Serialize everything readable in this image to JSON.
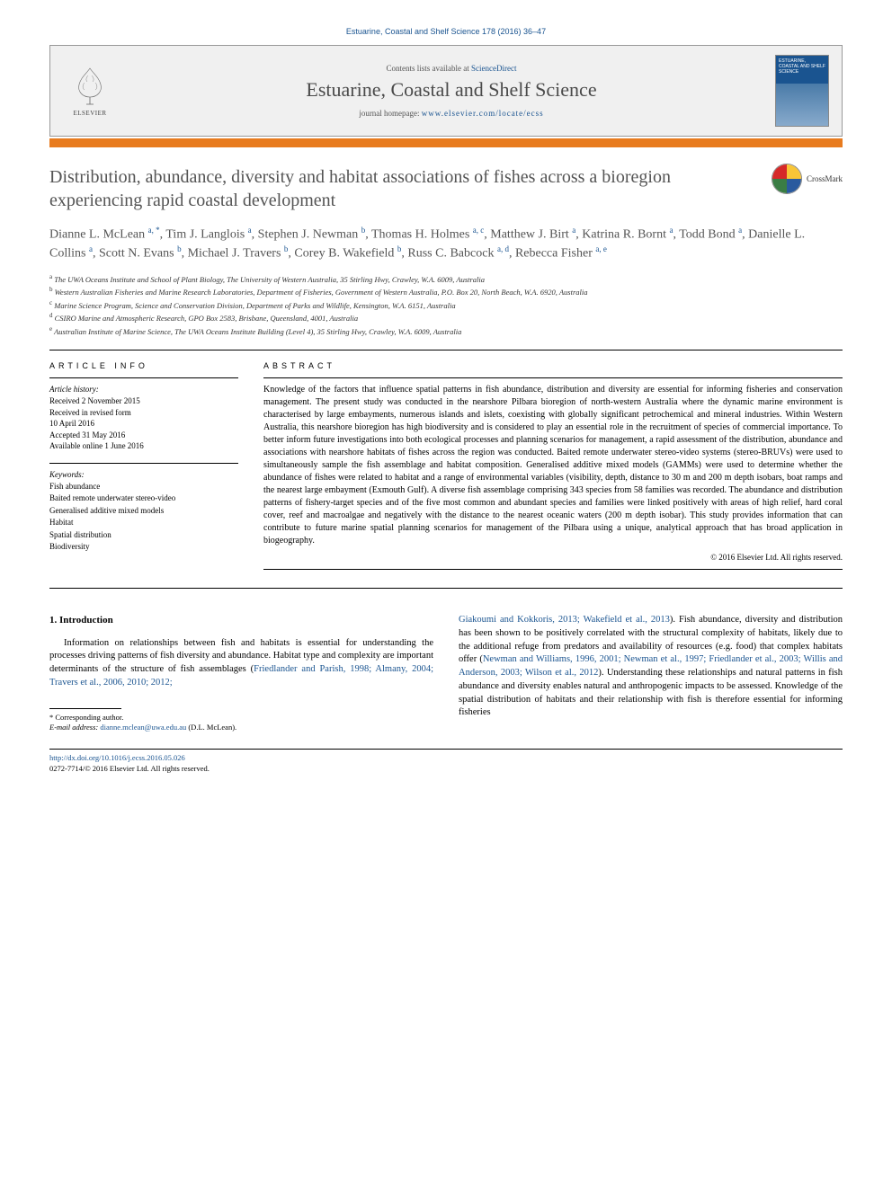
{
  "header": {
    "citation": "Estuarine, Coastal and Shelf Science 178 (2016) 36–47",
    "contents_prefix": "Contents lists available at ",
    "contents_link": "ScienceDirect",
    "journal_title": "Estuarine, Coastal and Shelf Science",
    "homepage_prefix": "journal homepage: ",
    "homepage_url": "www.elsevier.com/locate/ecss",
    "elsevier_label": "ELSEVIER",
    "cover_label": "ESTUARINE, COASTAL AND SHELF SCIENCE",
    "crossmark": "CrossMark"
  },
  "article": {
    "title": "Distribution, abundance, diversity and habitat associations of fishes across a bioregion experiencing rapid coastal development",
    "authors_html": "Dianne L. McLean <sup>a, *</sup>, Tim J. Langlois <sup>a</sup>, Stephen J. Newman <sup>b</sup>, Thomas H. Holmes <sup>a, c</sup>, Matthew J. Birt <sup>a</sup>, Katrina R. Bornt <sup>a</sup>, Todd Bond <sup>a</sup>, Danielle L. Collins <sup>a</sup>, Scott N. Evans <sup>b</sup>, Michael J. Travers <sup>b</sup>, Corey B. Wakefield <sup>b</sup>, Russ C. Babcock <sup>a, d</sup>, Rebecca Fisher <sup>a, e</sup>",
    "affiliations": [
      {
        "sup": "a",
        "text": "The UWA Oceans Institute and School of Plant Biology, The University of Western Australia, 35 Stirling Hwy, Crawley, W.A. 6009, Australia"
      },
      {
        "sup": "b",
        "text": "Western Australian Fisheries and Marine Research Laboratories, Department of Fisheries, Government of Western Australia, P.O. Box 20, North Beach, W.A. 6920, Australia"
      },
      {
        "sup": "c",
        "text": "Marine Science Program, Science and Conservation Division, Department of Parks and Wildlife, Kensington, W.A. 6151, Australia"
      },
      {
        "sup": "d",
        "text": "CSIRO Marine and Atmospheric Research, GPO Box 2583, Brisbane, Queensland, 4001, Australia"
      },
      {
        "sup": "e",
        "text": "Australian Institute of Marine Science, The UWA Oceans Institute Building (Level 4), 35 Stirling Hwy, Crawley, W.A. 6009, Australia"
      }
    ]
  },
  "info": {
    "heading": "ARTICLE INFO",
    "history_label": "Article history:",
    "history": [
      "Received 2 November 2015",
      "Received in revised form",
      "10 April 2016",
      "Accepted 31 May 2016",
      "Available online 1 June 2016"
    ],
    "keywords_label": "Keywords:",
    "keywords": [
      "Fish abundance",
      "Baited remote underwater stereo-video",
      "Generalised additive mixed models",
      "Habitat",
      "Spatial distribution",
      "Biodiversity"
    ]
  },
  "abstract": {
    "heading": "ABSTRACT",
    "text": "Knowledge of the factors that influence spatial patterns in fish abundance, distribution and diversity are essential for informing fisheries and conservation management. The present study was conducted in the nearshore Pilbara bioregion of north-western Australia where the dynamic marine environment is characterised by large embayments, numerous islands and islets, coexisting with globally significant petrochemical and mineral industries. Within Western Australia, this nearshore bioregion has high biodiversity and is considered to play an essential role in the recruitment of species of commercial importance. To better inform future investigations into both ecological processes and planning scenarios for management, a rapid assessment of the distribution, abundance and associations with nearshore habitats of fishes across the region was conducted. Baited remote underwater stereo-video systems (stereo-BRUVs) were used to simultaneously sample the fish assemblage and habitat composition. Generalised additive mixed models (GAMMs) were used to determine whether the abundance of fishes were related to habitat and a range of environmental variables (visibility, depth, distance to 30 m and 200 m depth isobars, boat ramps and the nearest large embayment (Exmouth Gulf). A diverse fish assemblage comprising 343 species from 58 families was recorded. The abundance and distribution patterns of fishery-target species and of the five most common and abundant species and families were linked positively with areas of high relief, hard coral cover, reef and macroalgae and negatively with the distance to the nearest oceanic waters (200 m depth isobar). This study provides information that can contribute to future marine spatial planning scenarios for management of the Pilbara using a unique, analytical approach that has broad application in biogeography.",
    "copyright": "© 2016 Elsevier Ltd. All rights reserved."
  },
  "body": {
    "section_number": "1.",
    "section_title": "Introduction",
    "left_para": "Information on relationships between fish and habitats is essential for understanding the processes driving patterns of fish diversity and abundance. Habitat type and complexity are important determinants of the structure of fish assemblages (",
    "left_refs": "Friedlander and Parish, 1998; Almany, 2004; Travers et al., 2006, 2010; 2012;",
    "right_refs": "Giakoumi and Kokkoris, 2013; Wakefield et al., 2013",
    "right_para_1": "). Fish abundance, diversity and distribution has been shown to be positively correlated with the structural complexity of habitats, likely due to the additional refuge from predators and availability of resources (e.g. food) that complex habitats offer (",
    "right_refs_2": "Newman and Williams, 1996, 2001; Newman et al., 1997; Friedlander et al., 2003; Willis and Anderson, 2003; Wilson et al., 2012",
    "right_para_2": "). Understanding these relationships and natural patterns in fish abundance and diversity enables natural and anthropogenic impacts to be assessed. Knowledge of the spatial distribution of habitats and their relationship with fish is therefore essential for informing fisheries"
  },
  "footnote": {
    "corresponding": "* Corresponding author.",
    "email_label": "E-mail address:",
    "email": "dianne.mclean@uwa.edu.au",
    "email_suffix": "(D.L. McLean)."
  },
  "footer": {
    "doi": "http://dx.doi.org/10.1016/j.ecss.2016.05.026",
    "issn_line": "0272-7714/© 2016 Elsevier Ltd. All rights reserved."
  },
  "colors": {
    "link": "#1a5490",
    "orange": "#e87b1e",
    "title_gray": "#545454",
    "header_bg": "#f0f0f0"
  }
}
